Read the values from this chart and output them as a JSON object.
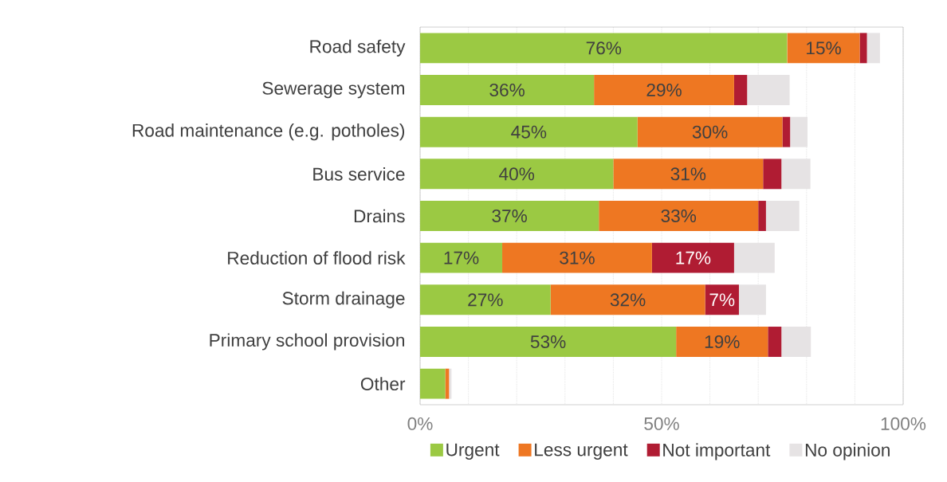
{
  "chart_data": {
    "type": "bar",
    "orientation": "horizontal",
    "stacked": true,
    "categories": [
      "Road safety",
      "Sewerage system",
      "Road maintenance (e.g. potholes)",
      "Bus service",
      "Drains",
      "Reduction of flood risk",
      "Storm drainage",
      "Primary school provision",
      "Other"
    ],
    "series": [
      {
        "name": "Urgent",
        "color": "#9bc943",
        "values": [
          76,
          36,
          45,
          40,
          37,
          17,
          27,
          53,
          5.2
        ],
        "value_labels": [
          "76%",
          "36%",
          "45%",
          "40%",
          "37%",
          "17%",
          "27%",
          "53%",
          null
        ]
      },
      {
        "name": "Less urgent",
        "color": "#ee7722",
        "values": [
          15,
          29,
          30,
          31,
          33,
          31,
          32,
          19,
          0.8
        ],
        "value_labels": [
          "15%",
          "29%",
          "30%",
          "31%",
          "33%",
          "31%",
          "32%",
          "19%",
          null
        ]
      },
      {
        "name": "Not important",
        "color": "#b01c33",
        "values": [
          1.5,
          2.7,
          1.6,
          3.8,
          1.6,
          17,
          7,
          2.8,
          0
        ],
        "value_labels": [
          null,
          null,
          null,
          null,
          null,
          "17%",
          "7%",
          null,
          null
        ]
      },
      {
        "name": "No opinion",
        "color": "#e6e3e4",
        "values": [
          2.7,
          8.8,
          3.6,
          6.0,
          6.9,
          8.4,
          5.6,
          6.1,
          0.5
        ]
      }
    ],
    "xlim": [
      0,
      100
    ],
    "xticks": [
      {
        "value": 0,
        "label": "0%"
      },
      {
        "value": 10,
        "label": null
      },
      {
        "value": 20,
        "label": null
      },
      {
        "value": 30,
        "label": null
      },
      {
        "value": 40,
        "label": null
      },
      {
        "value": 50,
        "label": "50%"
      },
      {
        "value": 60,
        "label": null
      },
      {
        "value": 70,
        "label": null
      },
      {
        "value": 80,
        "label": null
      },
      {
        "value": 90,
        "label": null
      },
      {
        "value": 100,
        "label": "100%"
      }
    ],
    "grid": "x",
    "legend": "bottom"
  }
}
